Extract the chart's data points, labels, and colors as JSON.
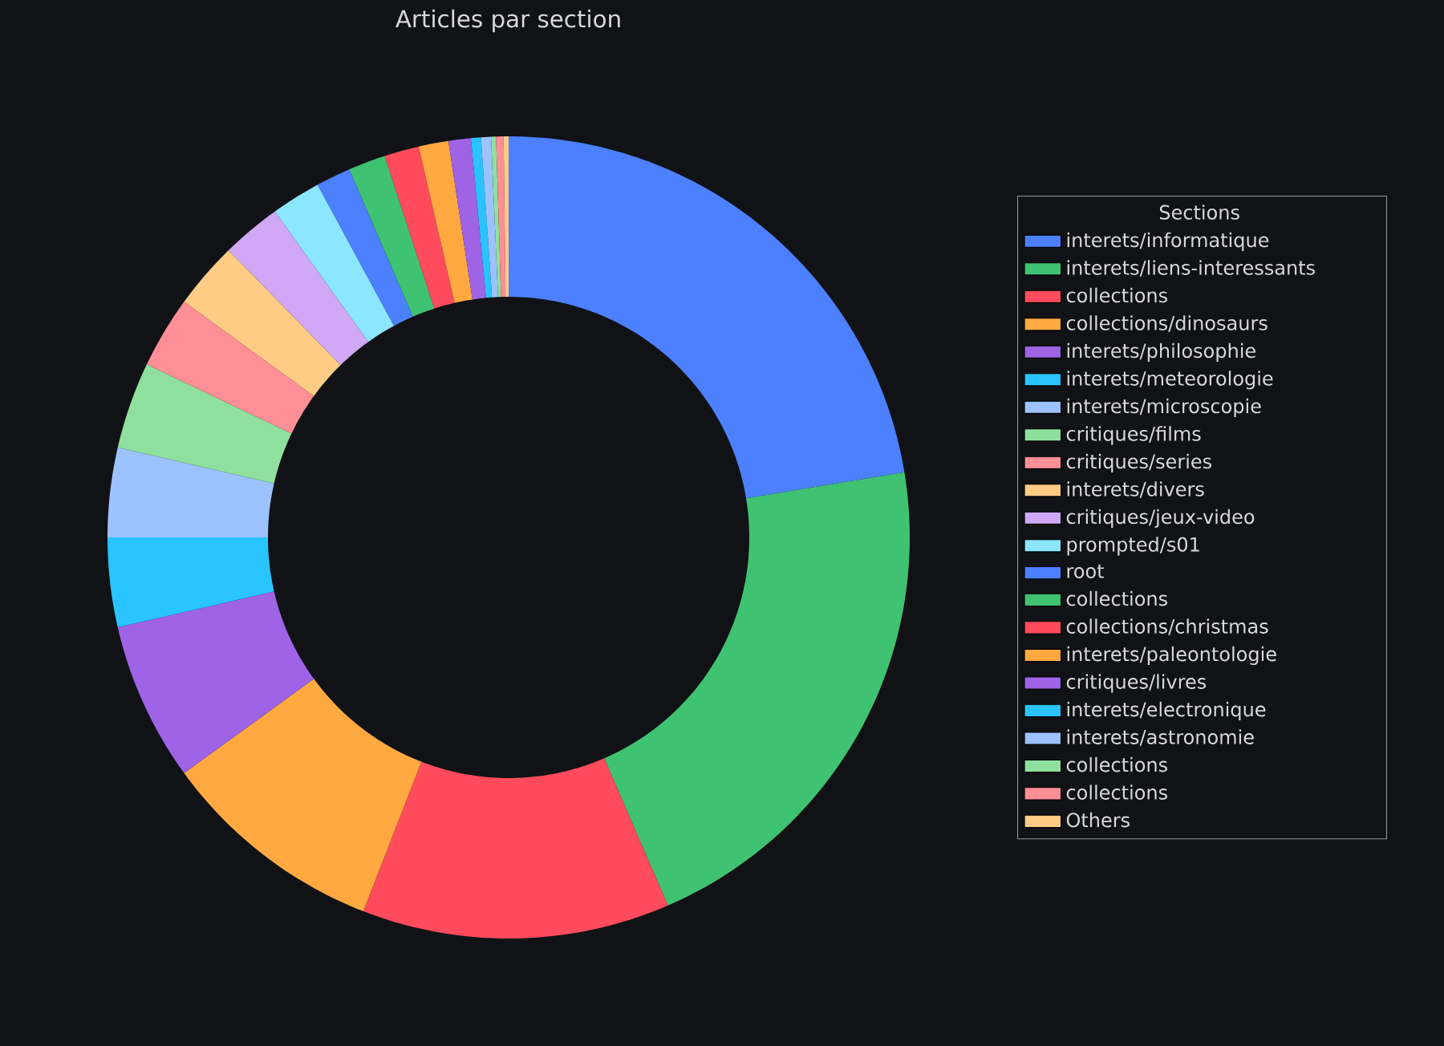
{
  "chart_data": {
    "type": "donut",
    "title": "Articles par section",
    "legend_title": "Sections",
    "legend": "right",
    "categories": [
      "interets/informatique",
      "interets/liens-interessants",
      "collections",
      "collections/dinosaurs",
      "interets/philosophie",
      "interets/meteorologie",
      "interets/microscopie",
      "critiques/films",
      "critiques/series",
      "interets/divers",
      "critiques/jeux-video",
      "prompted/s01",
      "root",
      "collections",
      "collections/christmas",
      "interets/paleontologie",
      "critiques/livres",
      "interets/electronique",
      "interets/astronomie",
      "collections",
      "collections",
      "Others"
    ],
    "values": [
      22.4,
      21.1,
      12.4,
      9.1,
      6.4,
      3.6,
      3.6,
      3.5,
      2.9,
      2.7,
      2.4,
      2.0,
      1.4,
      1.5,
      1.4,
      1.2,
      0.9,
      0.4,
      0.4,
      0.2,
      0.3,
      0.2
    ],
    "colors": [
      "#4c80ff",
      "#3fc372",
      "#ff4b5c",
      "#ffa940",
      "#9f63e6",
      "#29c4ff",
      "#9cc3ff",
      "#8fe09e",
      "#ff8f96",
      "#ffcc85",
      "#d0a8f5",
      "#8ce6ff",
      "#4c80ff",
      "#3fc372",
      "#ff4b5c",
      "#ffa940",
      "#9f63e6",
      "#29c4ff",
      "#9cc3ff",
      "#8fe09e",
      "#ff8f96",
      "#ffcc85"
    ]
  }
}
